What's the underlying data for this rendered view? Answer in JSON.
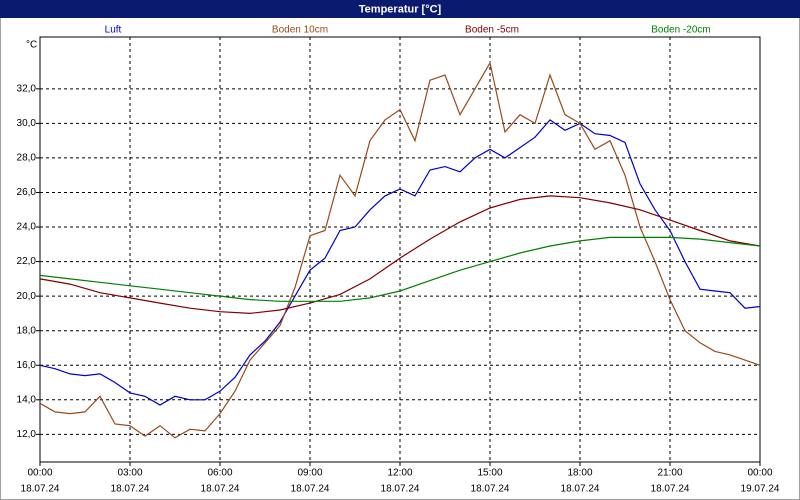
{
  "chart_data": {
    "type": "line",
    "title": "Temperatur [°C]",
    "y_label": "°C",
    "ylim": [
      10.4,
      35
    ],
    "yticks": [
      {
        "value": 12,
        "label": "12,0"
      },
      {
        "value": 14,
        "label": "14,0"
      },
      {
        "value": 16,
        "label": "16,0"
      },
      {
        "value": 18,
        "label": "18,0"
      },
      {
        "value": 20,
        "label": "20,0"
      },
      {
        "value": 22,
        "label": "22,0"
      },
      {
        "value": 24,
        "label": "24,0"
      },
      {
        "value": 26,
        "label": "26,0"
      },
      {
        "value": 28,
        "label": "28,0"
      },
      {
        "value": 30,
        "label": "30,0"
      },
      {
        "value": 32,
        "label": "32,0"
      }
    ],
    "xlim": [
      0,
      24
    ],
    "xticks": [
      {
        "value": 0,
        "label": "00:00"
      },
      {
        "value": 3,
        "label": "03:00"
      },
      {
        "value": 6,
        "label": "06:00"
      },
      {
        "value": 9,
        "label": "09:00"
      },
      {
        "value": 12,
        "label": "12:00"
      },
      {
        "value": 15,
        "label": "15:00"
      },
      {
        "value": 18,
        "label": "18:00"
      },
      {
        "value": 21,
        "label": "21:00"
      },
      {
        "value": 24,
        "label": "00:00"
      }
    ],
    "xtick_dates": [
      "18.07.24",
      "18.07.24",
      "18.07.24",
      "18.07.24",
      "18.07.24",
      "18.07.24",
      "18.07.24",
      "18.07.24",
      "19.07.24"
    ],
    "grid": true,
    "series": [
      {
        "name": "Luft",
        "color": "#0000c8",
        "x": [
          0,
          0.5,
          1,
          1.5,
          2,
          2.5,
          3,
          3.5,
          4,
          4.5,
          5,
          5.5,
          6,
          6.5,
          7,
          7.5,
          8,
          8.5,
          9,
          9.5,
          10,
          10.5,
          11,
          11.5,
          12,
          12.5,
          13,
          13.5,
          14,
          14.5,
          15,
          15.5,
          16,
          16.5,
          17,
          17.5,
          18,
          18.5,
          19,
          19.5,
          20,
          20.5,
          21,
          21.5,
          22,
          22.5,
          23,
          23.5,
          24
        ],
        "values": [
          16.0,
          15.8,
          15.5,
          15.4,
          15.5,
          15.0,
          14.4,
          14.2,
          13.7,
          14.2,
          14.0,
          14.0,
          14.5,
          15.3,
          16.6,
          17.4,
          18.5,
          20.0,
          21.5,
          22.2,
          23.8,
          24.0,
          25.0,
          25.8,
          26.2,
          25.8,
          27.3,
          27.5,
          27.2,
          28.0,
          28.5,
          28.0,
          28.6,
          29.2,
          30.2,
          29.6,
          30.0,
          29.4,
          29.3,
          28.9,
          26.5,
          25.0,
          23.8,
          22.0,
          20.4,
          20.3,
          20.2,
          19.3,
          19.4
        ]
      },
      {
        "name": "Boden 10cm",
        "color": "#9a4a1a",
        "x": [
          0,
          0.5,
          1,
          1.5,
          2,
          2.5,
          3,
          3.5,
          4,
          4.5,
          5,
          5.5,
          6,
          6.5,
          7,
          7.5,
          8,
          8.5,
          9,
          9.5,
          10,
          10.5,
          11,
          11.5,
          12,
          12.5,
          13,
          13.5,
          14,
          14.5,
          15,
          15.5,
          16,
          16.5,
          17,
          17.5,
          18,
          18.5,
          19,
          19.5,
          20,
          20.5,
          21,
          21.5,
          22,
          22.5,
          23,
          23.5,
          24
        ],
        "values": [
          13.8,
          13.3,
          13.2,
          13.3,
          14.2,
          12.6,
          12.5,
          11.9,
          12.5,
          11.8,
          12.3,
          12.2,
          13.2,
          14.5,
          16.3,
          17.3,
          18.3,
          20.5,
          23.5,
          23.8,
          27.0,
          25.8,
          29.0,
          30.2,
          30.8,
          29.0,
          32.5,
          32.8,
          30.5,
          32.0,
          33.5,
          29.5,
          30.5,
          30.0,
          32.8,
          30.5,
          30.0,
          28.5,
          29.0,
          27.0,
          24.0,
          22.0,
          19.8,
          18.0,
          17.3,
          16.8,
          16.6,
          16.3,
          16.0
        ]
      },
      {
        "name": "Boden -5cm",
        "color": "#800000",
        "x": [
          0,
          1,
          2,
          3,
          4,
          5,
          6,
          7,
          8,
          9,
          10,
          11,
          12,
          13,
          14,
          15,
          16,
          17,
          18,
          19,
          20,
          21,
          22,
          23,
          24
        ],
        "values": [
          21.0,
          20.7,
          20.2,
          19.9,
          19.6,
          19.3,
          19.1,
          19.0,
          19.2,
          19.6,
          20.1,
          21.0,
          22.2,
          23.3,
          24.3,
          25.1,
          25.6,
          25.8,
          25.7,
          25.4,
          25.0,
          24.4,
          23.8,
          23.2,
          22.9
        ]
      },
      {
        "name": "Boden -20cm",
        "color": "#008000",
        "x": [
          0,
          1,
          2,
          3,
          4,
          5,
          6,
          7,
          8,
          9,
          10,
          11,
          12,
          13,
          14,
          15,
          16,
          17,
          18,
          19,
          20,
          21,
          22,
          23,
          24
        ],
        "values": [
          21.2,
          21.0,
          20.8,
          20.6,
          20.4,
          20.2,
          20.0,
          19.8,
          19.7,
          19.7,
          19.7,
          19.9,
          20.3,
          20.9,
          21.5,
          22.0,
          22.5,
          22.9,
          23.2,
          23.4,
          23.4,
          23.4,
          23.3,
          23.1,
          22.9
        ]
      }
    ]
  }
}
